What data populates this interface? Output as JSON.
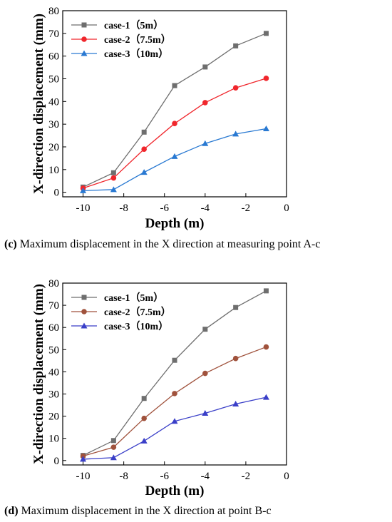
{
  "chart_data": [
    {
      "type": "line",
      "xlabel": "Depth (m)",
      "ylabel": "X-direction displacement (mm)",
      "xlim": [
        -11,
        0
      ],
      "ylim": [
        -2,
        80
      ],
      "xticks": [
        -10,
        -8,
        -6,
        -4,
        -2,
        0
      ],
      "yticks": [
        0,
        10,
        20,
        30,
        40,
        50,
        60,
        70,
        80
      ],
      "x": [
        -10,
        -8.5,
        -7,
        -5.5,
        -4,
        -2.5,
        -1
      ],
      "legend_position": "top-left",
      "series": [
        {
          "name": "case-1（5m）",
          "color": "#6e6e6e",
          "marker": "square",
          "values": [
            2.3,
            8.6,
            26.5,
            47.0,
            55.2,
            64.5,
            70.0
          ]
        },
        {
          "name": "case-2（7.5m）",
          "color": "#f0262c",
          "marker": "circle",
          "values": [
            1.8,
            6.3,
            19.0,
            30.3,
            39.5,
            46.0,
            50.2
          ]
        },
        {
          "name": "case-3（10m）",
          "color": "#2979d2",
          "marker": "triangle",
          "values": [
            0.7,
            1.2,
            8.8,
            15.8,
            21.5,
            25.7,
            28.0
          ]
        }
      ],
      "caption_letter": "(c)",
      "caption_text": " Maximum displacement in the X direction at measuring point A-c"
    },
    {
      "type": "line",
      "xlabel": "Depth (m)",
      "ylabel": "X-direction displacement (mm)",
      "xlim": [
        -11,
        0
      ],
      "ylim": [
        -2,
        80
      ],
      "xticks": [
        -10,
        -8,
        -6,
        -4,
        -2,
        0
      ],
      "yticks": [
        0,
        10,
        20,
        30,
        40,
        50,
        60,
        70,
        80
      ],
      "x": [
        -10,
        -8.5,
        -7,
        -5.5,
        -4,
        -2.5,
        -1
      ],
      "legend_position": "top-left",
      "series": [
        {
          "name": "case-1（5m）",
          "color": "#6e6e6e",
          "marker": "square",
          "values": [
            2.3,
            9.0,
            28.0,
            45.2,
            59.2,
            69.0,
            76.5
          ]
        },
        {
          "name": "case-2（7.5m）",
          "color": "#a0523c",
          "marker": "circle",
          "values": [
            2.0,
            6.0,
            19.0,
            30.2,
            39.3,
            46.0,
            51.2
          ]
        },
        {
          "name": "case-3（10m）",
          "color": "#3a3fc8",
          "marker": "triangle",
          "values": [
            0.6,
            1.3,
            8.8,
            17.7,
            21.3,
            25.5,
            28.5
          ]
        }
      ],
      "caption_letter": "(d)",
      "caption_text": " Maximum displacement in the X direction at point B-c"
    }
  ]
}
